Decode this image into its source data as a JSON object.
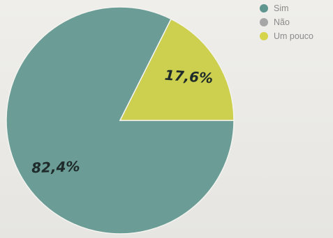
{
  "chart_data": {
    "type": "pie",
    "title": "",
    "legend": {
      "placement": "top-right",
      "entries": [
        {
          "label": "Sim",
          "color": "#5f958f"
        },
        {
          "label": "Não",
          "color": "#a6a6a6"
        },
        {
          "label": "Um pouco",
          "color": "#d6d44a"
        }
      ]
    },
    "slices": [
      {
        "label": "Sim",
        "value": 82.4,
        "color": "#6b9d96",
        "data_label": "82,4%"
      },
      {
        "label": "Não",
        "value": 0,
        "color": "#a6a6a6",
        "data_label": ""
      },
      {
        "label": "Um pouco",
        "value": 17.6,
        "color": "#cdd04f",
        "data_label": "17,6%"
      }
    ]
  }
}
